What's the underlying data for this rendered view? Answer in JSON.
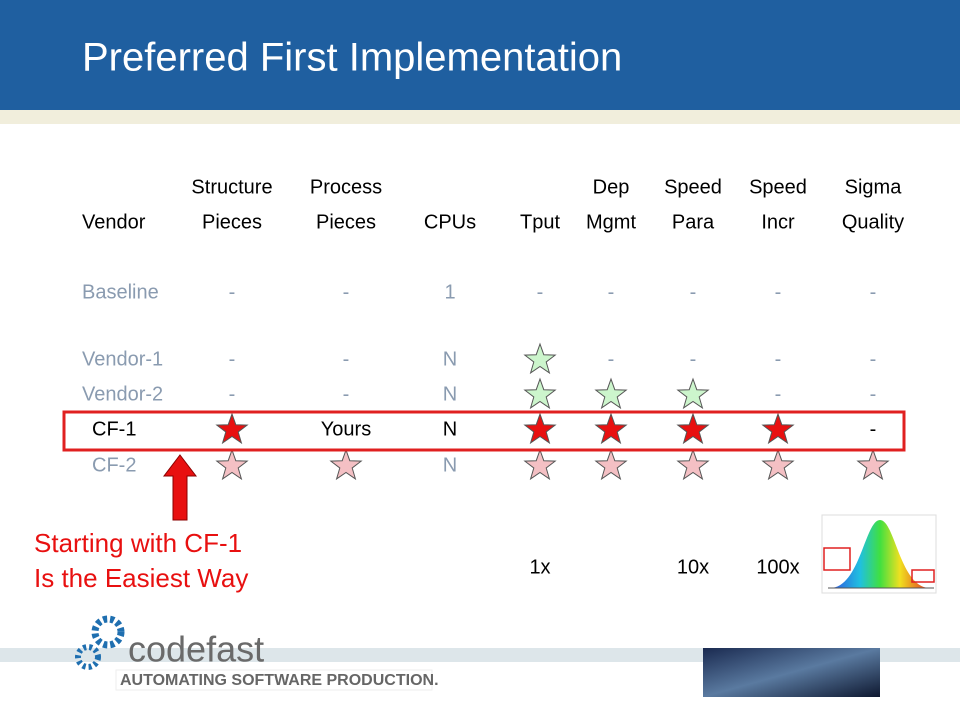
{
  "title": "Preferred First Implementation",
  "table": {
    "header_top": [
      null,
      "Structure",
      "Process",
      null,
      null,
      "Dep",
      "Speed",
      "Speed",
      "Sigma"
    ],
    "header_bottom": [
      "Vendor",
      "Pieces",
      "Pieces",
      "CPUs",
      "Tput",
      "Mgmt",
      "Para",
      "Incr",
      "Quality"
    ],
    "rows": [
      {
        "vendor": "Baseline",
        "color": "#8a9bb0",
        "cells": [
          "-",
          "-",
          "1",
          "-",
          "-",
          "-",
          "-",
          "-"
        ]
      },
      {
        "vendor": "Vendor-1",
        "color": "#8a9bb0",
        "cells": [
          "-",
          "-",
          "N",
          {
            "star": "#ccf5cc"
          },
          "-",
          "-",
          "-",
          "-"
        ]
      },
      {
        "vendor": "Vendor-2",
        "color": "#8a9bb0",
        "cells": [
          "-",
          "-",
          "N",
          {
            "star": "#ccf5cc"
          },
          {
            "star": "#ccf5cc"
          },
          {
            "star": "#ccf5cc"
          },
          "-",
          "-"
        ]
      },
      {
        "vendor": "CF-1",
        "color": "#000000",
        "cells": [
          {
            "star": "#e81010"
          },
          "Yours",
          "N",
          {
            "star": "#e81010"
          },
          {
            "star": "#e81010"
          },
          {
            "star": "#e81010"
          },
          {
            "star": "#e81010"
          },
          "-"
        ]
      },
      {
        "vendor": "CF-2",
        "color": "#8a9bb0",
        "cells": [
          {
            "star": "#f4c0c4"
          },
          {
            "star": "#f4c0c4"
          },
          "N",
          {
            "star": "#f4c0c4"
          },
          {
            "star": "#f4c0c4"
          },
          {
            "star": "#f4c0c4"
          },
          {
            "star": "#f4c0c4"
          },
          {
            "star": "#f4c0c4"
          }
        ]
      }
    ],
    "speeds": [
      null,
      null,
      null,
      null,
      "1x",
      null,
      "10x",
      "100x",
      null
    ]
  },
  "callout": [
    "Starting with CF-1",
    "Is the Easiest Way"
  ],
  "logo": {
    "name": "codefast",
    "tagline": "AUTOMATING SOFTWARE PRODUCTION."
  }
}
